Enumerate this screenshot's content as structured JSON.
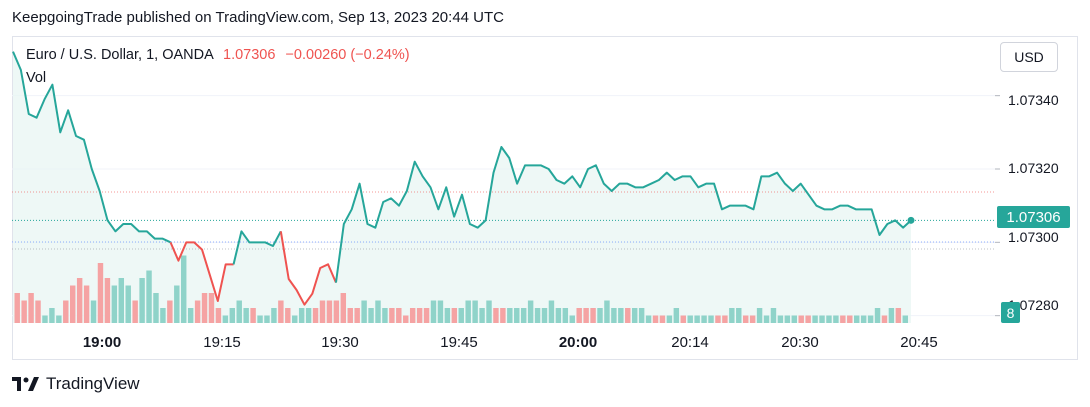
{
  "publisher_line": "KeepgoingTrade published on TradingView.com, Sep 13, 2023 20:44 UTC",
  "legend": {
    "symbol": "Euro / U.S. Dollar, 1, OANDA",
    "last": "1.07306",
    "change": "−0.00260 (−0.24%)",
    "volume_label": "Vol"
  },
  "currency_button": "USD",
  "brand": {
    "name": "TradingView",
    "icon": "tradingview-logo-icon"
  },
  "colors": {
    "up": "#26a69a",
    "down": "#ef5350",
    "area": "#e8f5f3",
    "vol_up": "#8fd3c9",
    "vol_down": "#f5a3a3"
  },
  "chart_data": {
    "type": "line",
    "title": "Euro / U.S. Dollar, 1, OANDA",
    "y_ticks": [
      "1.07340",
      "1.07320",
      "1.07300",
      "1.07280"
    ],
    "x_ticks": [
      "19:00",
      "19:15",
      "19:30",
      "19:45",
      "20:00",
      "20:14",
      "20:30",
      "20:45"
    ],
    "x_ticks_bold": [
      "19:00",
      "20:00"
    ],
    "last_price_label": "1.07306",
    "volume_last_label": "8",
    "ylim": [
      1.07278,
      1.07356
    ],
    "price_series": {
      "name": "EURUSD",
      "segments": [
        {
          "color": "up",
          "values": [
            1.07352,
            1.07347,
            1.07335,
            1.07334,
            1.07339,
            1.07343,
            1.0733,
            1.07336,
            1.07329,
            1.07328,
            1.0732,
            1.07314,
            1.07306,
            1.07303,
            1.07305,
            1.07305,
            1.07303,
            1.07303,
            1.07301,
            1.07301,
            1.073
          ]
        },
        {
          "color": "down",
          "values": [
            1.073,
            1.07295,
            1.073,
            1.073,
            1.07298,
            1.07291,
            1.07284,
            1.07294,
            1.07294
          ]
        },
        {
          "color": "up",
          "values": [
            1.07294,
            1.07303,
            1.073,
            1.073,
            1.073,
            1.07299,
            1.07303
          ]
        },
        {
          "color": "down",
          "values": [
            1.07303,
            1.0729,
            1.07287,
            1.07283,
            1.07286,
            1.07293,
            1.07294,
            1.07289
          ]
        },
        {
          "color": "up",
          "values": [
            1.07289,
            1.07305,
            1.07309,
            1.07316,
            1.07305,
            1.07304,
            1.07311,
            1.07312,
            1.0731,
            1.07314,
            1.07322,
            1.07318,
            1.07315,
            1.07309,
            1.07315,
            1.07307,
            1.07313,
            1.07305,
            1.07304,
            1.07306,
            1.07319,
            1.07326,
            1.07323,
            1.07316,
            1.07321,
            1.07321,
            1.07321,
            1.0732,
            1.07317,
            1.07316,
            1.07318,
            1.07315,
            1.0732,
            1.07321,
            1.07316,
            1.07314,
            1.07316,
            1.07316,
            1.07315,
            1.07315,
            1.07316,
            1.07317,
            1.07319,
            1.07317,
            1.07318,
            1.07318,
            1.07315,
            1.07316,
            1.07316,
            1.07309,
            1.0731,
            1.0731,
            1.0731,
            1.07309,
            1.07318,
            1.07318,
            1.07319,
            1.07316,
            1.07314,
            1.07316,
            1.07313,
            1.0731,
            1.07309,
            1.07309,
            1.0731,
            1.0731,
            1.07309,
            1.07309,
            1.07309,
            1.07302,
            1.07305,
            1.07306,
            1.07304,
            1.07306
          ]
        }
      ]
    },
    "volume_series": {
      "name": "Vol",
      "values": [
        4,
        3,
        4,
        3,
        1,
        2,
        1,
        3,
        5,
        6,
        5,
        3,
        8,
        6,
        5,
        6,
        5,
        3,
        6,
        7,
        4,
        2,
        3,
        5,
        9,
        2,
        3,
        4,
        4,
        2,
        1,
        2,
        3,
        2,
        2,
        1,
        1,
        2,
        3,
        2,
        1,
        2,
        2,
        2,
        3,
        3,
        3,
        4,
        2,
        2,
        3,
        2,
        3,
        2,
        2,
        2,
        1,
        2,
        2,
        2,
        3,
        3,
        2,
        2,
        2,
        3,
        3,
        2,
        3,
        2,
        2,
        2,
        2,
        2,
        3,
        2,
        2,
        3,
        2,
        2,
        1,
        2,
        2,
        2,
        2,
        3,
        2,
        2,
        2,
        2,
        2,
        1,
        1,
        1,
        1,
        2,
        1,
        1,
        1,
        1,
        1,
        1,
        1,
        2,
        2,
        1,
        1,
        2,
        1,
        2,
        1,
        1,
        1,
        1,
        1,
        1,
        1,
        1,
        1,
        1,
        1,
        1,
        1,
        1,
        2,
        1,
        2,
        2,
        1
      ],
      "up": [
        false,
        false,
        false,
        false,
        true,
        true,
        true,
        false,
        false,
        false,
        false,
        true,
        false,
        false,
        true,
        true,
        true,
        false,
        true,
        true,
        true,
        true,
        false,
        true,
        true,
        true,
        false,
        false,
        false,
        false,
        true,
        true,
        true,
        true,
        false,
        true,
        true,
        true,
        false,
        false,
        true,
        true,
        true,
        false,
        false,
        false,
        false,
        false,
        false,
        false,
        true,
        true,
        true,
        true,
        false,
        false,
        false,
        false,
        false,
        false,
        true,
        true,
        true,
        false,
        true,
        true,
        true,
        true,
        true,
        false,
        false,
        true,
        true,
        true,
        true,
        true,
        true,
        true,
        true,
        true,
        true,
        false,
        false,
        false,
        true,
        true,
        true,
        true,
        false,
        true,
        true,
        true,
        false,
        false,
        true,
        true,
        false,
        true,
        true,
        true,
        true,
        false,
        false,
        true,
        true,
        false,
        false,
        true,
        true,
        true,
        true,
        true,
        true,
        false,
        false,
        true,
        true,
        true,
        true,
        false,
        false,
        true,
        true,
        true,
        true,
        false,
        true,
        false,
        true
      ],
      "vol_axis_max": 12
    }
  }
}
